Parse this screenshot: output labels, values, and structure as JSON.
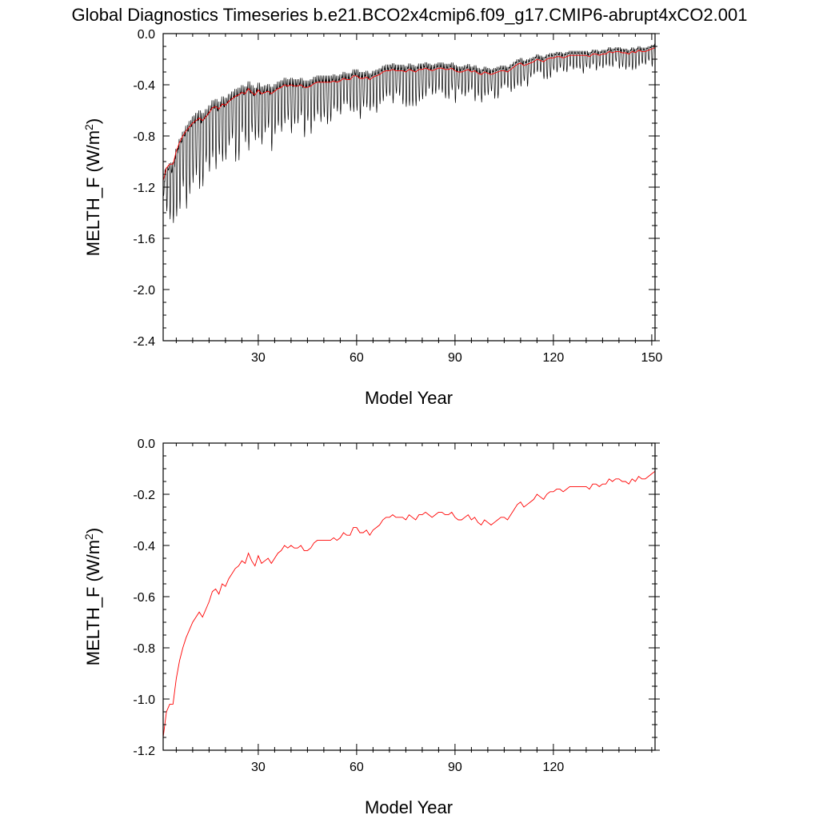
{
  "title": "Global Diagnostics Timeseries b.e21.BCO2x4cmip6.f09_g17.CMIP6-abrupt4xCO2.001",
  "chart_data": [
    {
      "type": "line",
      "xlabel": "Model Year",
      "ylabel_main": "MELTH_F (W/m",
      "ylabel_sup": "2",
      "ylabel_close": ")",
      "xlim": [
        1,
        151
      ],
      "ylim": [
        -2.4,
        0.0
      ],
      "xticks": [
        30,
        60,
        90,
        120,
        150
      ],
      "xtick_labels": [
        "30",
        "60",
        "90",
        "120",
        "150"
      ],
      "yticks": [
        0.0,
        -0.4,
        -0.8,
        -1.2,
        -1.6,
        -2.0,
        -2.4
      ],
      "ytick_labels": [
        "0.0",
        "-0.4",
        "-0.8",
        "-1.2",
        "-1.6",
        "-2.0",
        "-2.4"
      ],
      "series": [
        {
          "color": "#000000",
          "monthly_amplitude": [
            [
              1,
              0.12
            ],
            [
              3,
              0.55
            ],
            [
              10,
              0.55
            ],
            [
              30,
              0.42
            ],
            [
              60,
              0.3
            ],
            [
              90,
              0.24
            ],
            [
              120,
              0.16
            ],
            [
              151,
              0.14
            ]
          ],
          "monthly_offset": [
            [
              1,
              0.0
            ],
            [
              10,
              0.06
            ],
            [
              60,
              0.05
            ],
            [
              151,
              0.03
            ]
          ],
          "annual_mean_ref": "annual_mean"
        },
        {
          "color": "#ff0000",
          "annual_mean_ref": "annual_mean"
        }
      ]
    },
    {
      "type": "line",
      "xlabel": "Model Year",
      "ylabel_main": "MELTH_F (W/m",
      "ylabel_sup": "2",
      "ylabel_close": ")",
      "xlim": [
        1,
        151
      ],
      "ylim": [
        -1.2,
        0.0
      ],
      "xticks": [
        30,
        60,
        90,
        120
      ],
      "xtick_labels": [
        "30",
        "60",
        "90",
        "120"
      ],
      "yticks": [
        0.0,
        -0.2,
        -0.4,
        -0.6,
        -0.8,
        -1.0,
        -1.2
      ],
      "ytick_labels": [
        "0.0",
        "-0.2",
        "-0.4",
        "-0.6",
        "-0.8",
        "-1.0",
        "-1.2"
      ],
      "series": [
        {
          "color": "#ff0000",
          "annual_mean_ref": "annual_mean"
        }
      ]
    }
  ],
  "annual_mean": {
    "x_start": 1,
    "values": [
      -1.15,
      -1.05,
      -1.02,
      -1.02,
      -0.92,
      -0.85,
      -0.8,
      -0.76,
      -0.73,
      -0.7,
      -0.68,
      -0.66,
      -0.68,
      -0.65,
      -0.62,
      -0.58,
      -0.57,
      -0.59,
      -0.55,
      -0.56,
      -0.53,
      -0.51,
      -0.49,
      -0.48,
      -0.46,
      -0.47,
      -0.43,
      -0.46,
      -0.48,
      -0.44,
      -0.47,
      -0.46,
      -0.45,
      -0.47,
      -0.45,
      -0.43,
      -0.42,
      -0.4,
      -0.41,
      -0.4,
      -0.41,
      -0.41,
      -0.4,
      -0.42,
      -0.42,
      -0.41,
      -0.39,
      -0.38,
      -0.38,
      -0.38,
      -0.38,
      -0.38,
      -0.37,
      -0.38,
      -0.37,
      -0.35,
      -0.36,
      -0.36,
      -0.33,
      -0.33,
      -0.35,
      -0.35,
      -0.34,
      -0.36,
      -0.34,
      -0.33,
      -0.32,
      -0.3,
      -0.29,
      -0.29,
      -0.28,
      -0.29,
      -0.29,
      -0.29,
      -0.3,
      -0.28,
      -0.29,
      -0.3,
      -0.28,
      -0.28,
      -0.27,
      -0.28,
      -0.29,
      -0.28,
      -0.27,
      -0.27,
      -0.28,
      -0.28,
      -0.27,
      -0.29,
      -0.3,
      -0.3,
      -0.29,
      -0.28,
      -0.3,
      -0.29,
      -0.31,
      -0.32,
      -0.3,
      -0.31,
      -0.32,
      -0.31,
      -0.3,
      -0.29,
      -0.29,
      -0.3,
      -0.28,
      -0.26,
      -0.24,
      -0.23,
      -0.25,
      -0.24,
      -0.23,
      -0.22,
      -0.2,
      -0.21,
      -0.22,
      -0.2,
      -0.19,
      -0.19,
      -0.18,
      -0.18,
      -0.19,
      -0.18,
      -0.17,
      -0.17,
      -0.17,
      -0.17,
      -0.17,
      -0.17,
      -0.18,
      -0.16,
      -0.16,
      -0.17,
      -0.16,
      -0.16,
      -0.14,
      -0.15,
      -0.14,
      -0.14,
      -0.15,
      -0.15,
      -0.16,
      -0.14,
      -0.15,
      -0.13,
      -0.14,
      -0.14,
      -0.13,
      -0.12,
      -0.11
    ]
  }
}
